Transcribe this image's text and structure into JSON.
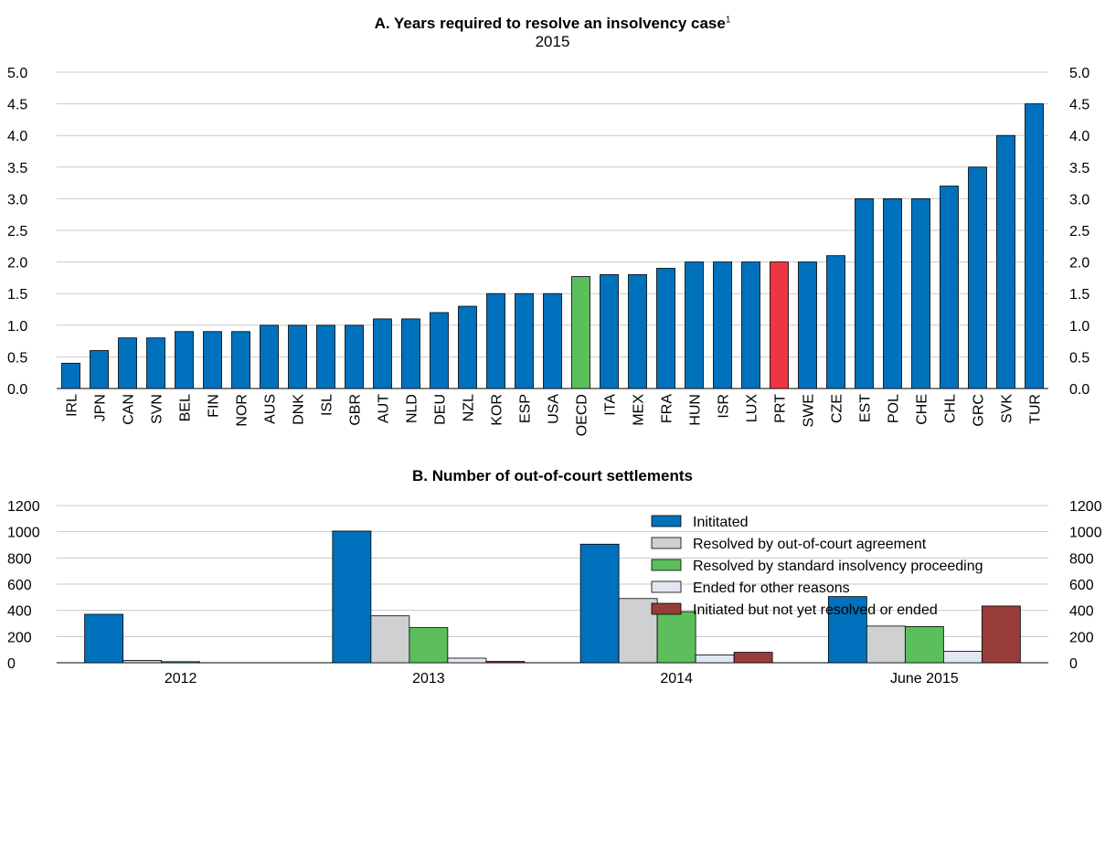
{
  "colors": {
    "bar": "#0071bc",
    "oecd": "#5cbf5c",
    "highlight": "#ee3542",
    "gray": "#cfd0d2",
    "green": "#5cbf5c",
    "light": "#e1e6f0",
    "dark": "#983c3a",
    "grid": "#c8c8c8"
  },
  "panel_a": {
    "title": "A. Years required to resolve an insolvency case",
    "footnote": "1",
    "subtitle": "2015"
  },
  "panel_b": {
    "title": "B. Number of out-of-court settlements"
  },
  "chart_data": [
    {
      "type": "bar",
      "title": "A. Years required to resolve an insolvency case",
      "subtitle": "2015",
      "ylim": [
        0,
        5
      ],
      "yticks": [
        "0.0",
        "0.5",
        "1.0",
        "1.5",
        "2.0",
        "2.5",
        "3.0",
        "3.5",
        "4.0",
        "4.5",
        "5.0"
      ],
      "grid": true,
      "categories": [
        "IRL",
        "JPN",
        "CAN",
        "SVN",
        "BEL",
        "FIN",
        "NOR",
        "AUS",
        "DNK",
        "ISL",
        "GBR",
        "AUT",
        "NLD",
        "DEU",
        "NZL",
        "KOR",
        "ESP",
        "USA",
        "OECD",
        "ITA",
        "MEX",
        "FRA",
        "HUN",
        "ISR",
        "LUX",
        "PRT",
        "SWE",
        "CZE",
        "EST",
        "POL",
        "CHE",
        "CHL",
        "GRC",
        "SVK",
        "TUR"
      ],
      "values": [
        0.4,
        0.6,
        0.8,
        0.8,
        0.9,
        0.9,
        0.9,
        1.0,
        1.0,
        1.0,
        1.0,
        1.1,
        1.1,
        1.2,
        1.3,
        1.5,
        1.5,
        1.5,
        1.77,
        1.8,
        1.8,
        1.9,
        2.0,
        2.0,
        2.0,
        2.0,
        2.0,
        2.1,
        3.0,
        3.0,
        3.0,
        3.2,
        3.5,
        4.0,
        4.5
      ],
      "highlight": {
        "OECD": "oecd",
        "PRT": "highlight"
      }
    },
    {
      "type": "bar",
      "title": "B. Number of out-of-court settlements",
      "ylim": [
        0,
        1200
      ],
      "yticks": [
        "0",
        "200",
        "400",
        "600",
        "800",
        "1000",
        "1200"
      ],
      "grid": true,
      "legend_position": "top-right",
      "categories": [
        "2012",
        "2013",
        "2014",
        "June 2015"
      ],
      "series": [
        {
          "name": "Inititated",
          "color_key": "bar",
          "values": [
            370,
            1005,
            905,
            505
          ]
        },
        {
          "name": "Resolved by out-of-court agreement",
          "color_key": "gray",
          "values": [
            18,
            358,
            490,
            280
          ]
        },
        {
          "name": "Resolved by standard insolvency proceeding",
          "color_key": "green",
          "values": [
            8,
            268,
            390,
            276
          ]
        },
        {
          "name": "Ended for other reasons",
          "color_key": "light",
          "values": [
            0,
            35,
            60,
            88
          ]
        },
        {
          "name": "Initiated but not yet resolved or ended",
          "color_key": "dark",
          "values": [
            0,
            10,
            80,
            433
          ]
        }
      ]
    }
  ]
}
